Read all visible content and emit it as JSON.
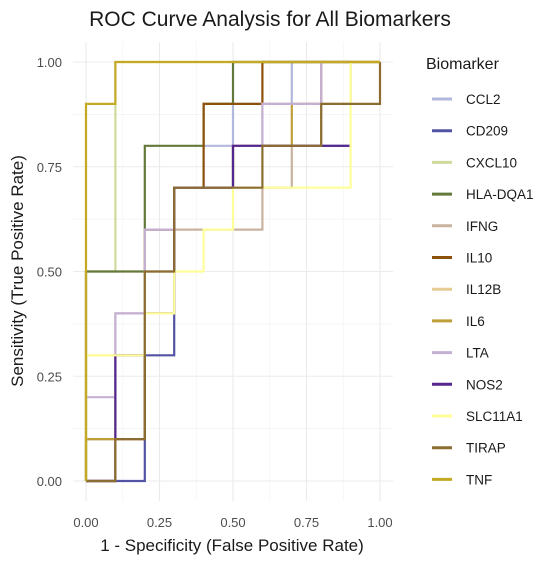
{
  "chart_data": {
    "type": "line",
    "title": "ROC Curve Analysis for All Biomarkers",
    "xlabel": "1 - Specificity (False Positive Rate)",
    "ylabel": "Sensitivity (True Positive Rate)",
    "xlim": [
      0,
      1
    ],
    "ylim": [
      0,
      1
    ],
    "x_ticks": [
      "0.00",
      "0.25",
      "0.50",
      "0.75",
      "1.00"
    ],
    "y_ticks": [
      "0.00",
      "0.25",
      "0.50",
      "0.75",
      "1.00"
    ],
    "grid": true,
    "legend": {
      "title": "Biomarker",
      "position": "right"
    },
    "series": [
      {
        "name": "CCL2",
        "color": "#b2b7dc",
        "points": [
          [
            0,
            0
          ],
          [
            0,
            0.1
          ],
          [
            0.1,
            0.1
          ],
          [
            0.1,
            0.3
          ],
          [
            0.2,
            0.3
          ],
          [
            0.2,
            0.5
          ],
          [
            0.2,
            0.6
          ],
          [
            0.3,
            0.6
          ],
          [
            0.3,
            0.7
          ],
          [
            0.4,
            0.7
          ],
          [
            0.4,
            0.8
          ],
          [
            0.5,
            0.8
          ],
          [
            0.5,
            0.9
          ],
          [
            0.7,
            0.9
          ],
          [
            0.7,
            1
          ],
          [
            1,
            1
          ]
        ]
      },
      {
        "name": "CD209",
        "color": "#5254a3",
        "points": [
          [
            0,
            0
          ],
          [
            0.2,
            0
          ],
          [
            0.2,
            0.3
          ],
          [
            0.3,
            0.3
          ],
          [
            0.3,
            0.7
          ],
          [
            0.5,
            0.7
          ],
          [
            0.5,
            0.8
          ],
          [
            0.9,
            0.8
          ]
        ]
      },
      {
        "name": "CXCL10",
        "color": "#cedb9c",
        "points": [
          [
            0,
            0
          ],
          [
            0,
            0.5
          ],
          [
            0.1,
            0.5
          ],
          [
            0.1,
            0.9
          ],
          [
            0.1,
            1
          ],
          [
            1,
            1
          ]
        ]
      },
      {
        "name": "HLA-DQA1",
        "color": "#637939",
        "points": [
          [
            0,
            0
          ],
          [
            0,
            0.5
          ],
          [
            0.2,
            0.5
          ],
          [
            0.2,
            0.8
          ],
          [
            0.4,
            0.8
          ],
          [
            0.4,
            0.9
          ],
          [
            0.5,
            0.9
          ],
          [
            0.5,
            1
          ],
          [
            1,
            1
          ]
        ]
      },
      {
        "name": "IFNG",
        "color": "#c9b3a0",
        "points": [
          [
            0,
            0
          ],
          [
            0,
            0.1
          ],
          [
            0.1,
            0.1
          ],
          [
            0.1,
            0.3
          ],
          [
            0.2,
            0.3
          ],
          [
            0.2,
            0.5
          ],
          [
            0.3,
            0.5
          ],
          [
            0.3,
            0.6
          ],
          [
            0.6,
            0.6
          ],
          [
            0.6,
            0.7
          ],
          [
            0.7,
            0.7
          ],
          [
            0.7,
            0.8
          ],
          [
            0.8,
            0.8
          ],
          [
            0.8,
            0.9
          ],
          [
            0.9,
            0.9
          ],
          [
            0.9,
            1
          ],
          [
            1,
            1
          ]
        ]
      },
      {
        "name": "IL10",
        "color": "#8c510a",
        "points": [
          [
            0,
            0
          ],
          [
            0.1,
            0
          ],
          [
            0.1,
            0.1
          ],
          [
            0.2,
            0.1
          ],
          [
            0.2,
            0.6
          ],
          [
            0.3,
            0.6
          ],
          [
            0.3,
            0.7
          ],
          [
            0.4,
            0.7
          ],
          [
            0.4,
            0.9
          ],
          [
            0.6,
            0.9
          ],
          [
            0.6,
            1
          ],
          [
            1,
            1
          ]
        ]
      },
      {
        "name": "IL12B",
        "color": "#e7cb94",
        "points": [
          [
            0,
            0
          ],
          [
            0,
            0.3
          ],
          [
            0.1,
            0.3
          ],
          [
            0.1,
            0.4
          ],
          [
            0.2,
            0.4
          ],
          [
            0.2,
            0.6
          ],
          [
            0.3,
            0.6
          ],
          [
            0.3,
            0.7
          ],
          [
            0.5,
            0.7
          ],
          [
            0.5,
            0.8
          ],
          [
            0.6,
            0.8
          ],
          [
            0.6,
            0.9
          ],
          [
            0.8,
            0.9
          ],
          [
            0.8,
            1
          ],
          [
            1,
            1
          ]
        ]
      },
      {
        "name": "IL6",
        "color": "#bd9e39",
        "points": [
          [
            0,
            0
          ],
          [
            0,
            0.1
          ],
          [
            0.1,
            0.1
          ],
          [
            0.1,
            0.3
          ],
          [
            0.2,
            0.3
          ],
          [
            0.2,
            0.6
          ],
          [
            0.3,
            0.6
          ],
          [
            0.3,
            0.7
          ],
          [
            0.5,
            0.7
          ],
          [
            0.5,
            0.8
          ],
          [
            0.7,
            0.8
          ],
          [
            0.7,
            0.9
          ],
          [
            0.8,
            0.9
          ],
          [
            0.8,
            1
          ],
          [
            1,
            1
          ]
        ]
      },
      {
        "name": "LTA",
        "color": "#c5b0d5",
        "points": [
          [
            0,
            0
          ],
          [
            0,
            0.2
          ],
          [
            0.1,
            0.2
          ],
          [
            0.1,
            0.4
          ],
          [
            0.2,
            0.4
          ],
          [
            0.2,
            0.6
          ],
          [
            0.3,
            0.6
          ],
          [
            0.3,
            0.7
          ],
          [
            0.5,
            0.7
          ],
          [
            0.5,
            0.8
          ],
          [
            0.6,
            0.8
          ],
          [
            0.6,
            0.9
          ],
          [
            0.8,
            0.9
          ],
          [
            0.8,
            1
          ],
          [
            1,
            1
          ]
        ]
      },
      {
        "name": "NOS2",
        "color": "#54278f",
        "points": [
          [
            0,
            0
          ],
          [
            0.1,
            0
          ],
          [
            0.1,
            0.3
          ],
          [
            0.2,
            0.3
          ],
          [
            0.2,
            0.4
          ],
          [
            0.3,
            0.4
          ],
          [
            0.3,
            0.7
          ],
          [
            0.5,
            0.7
          ],
          [
            0.5,
            0.8
          ],
          [
            0.9,
            0.8
          ]
        ]
      },
      {
        "name": "SLC11A1",
        "color": "#ffff99",
        "points": [
          [
            0,
            0
          ],
          [
            0,
            0.3
          ],
          [
            0.2,
            0.3
          ],
          [
            0.2,
            0.4
          ],
          [
            0.3,
            0.4
          ],
          [
            0.3,
            0.5
          ],
          [
            0.4,
            0.5
          ],
          [
            0.4,
            0.6
          ],
          [
            0.5,
            0.6
          ],
          [
            0.5,
            0.7
          ],
          [
            0.8,
            0.7
          ],
          [
            0.9,
            0.7
          ],
          [
            0.9,
            1
          ],
          [
            1,
            1
          ]
        ]
      },
      {
        "name": "TIRAP",
        "color": "#8c6d31",
        "points": [
          [
            0,
            0
          ],
          [
            0.1,
            0
          ],
          [
            0.1,
            0.1
          ],
          [
            0.2,
            0.1
          ],
          [
            0.2,
            0.5
          ],
          [
            0.3,
            0.5
          ],
          [
            0.3,
            0.7
          ],
          [
            0.6,
            0.7
          ],
          [
            0.6,
            0.8
          ],
          [
            0.8,
            0.8
          ],
          [
            0.8,
            0.9
          ],
          [
            1,
            0.9
          ],
          [
            1,
            1
          ]
        ]
      },
      {
        "name": "TNF",
        "color": "#c4aa23",
        "points": [
          [
            0,
            0
          ],
          [
            0,
            0.9
          ],
          [
            0.1,
            0.9
          ],
          [
            0.1,
            1
          ],
          [
            1,
            1
          ]
        ]
      }
    ]
  }
}
